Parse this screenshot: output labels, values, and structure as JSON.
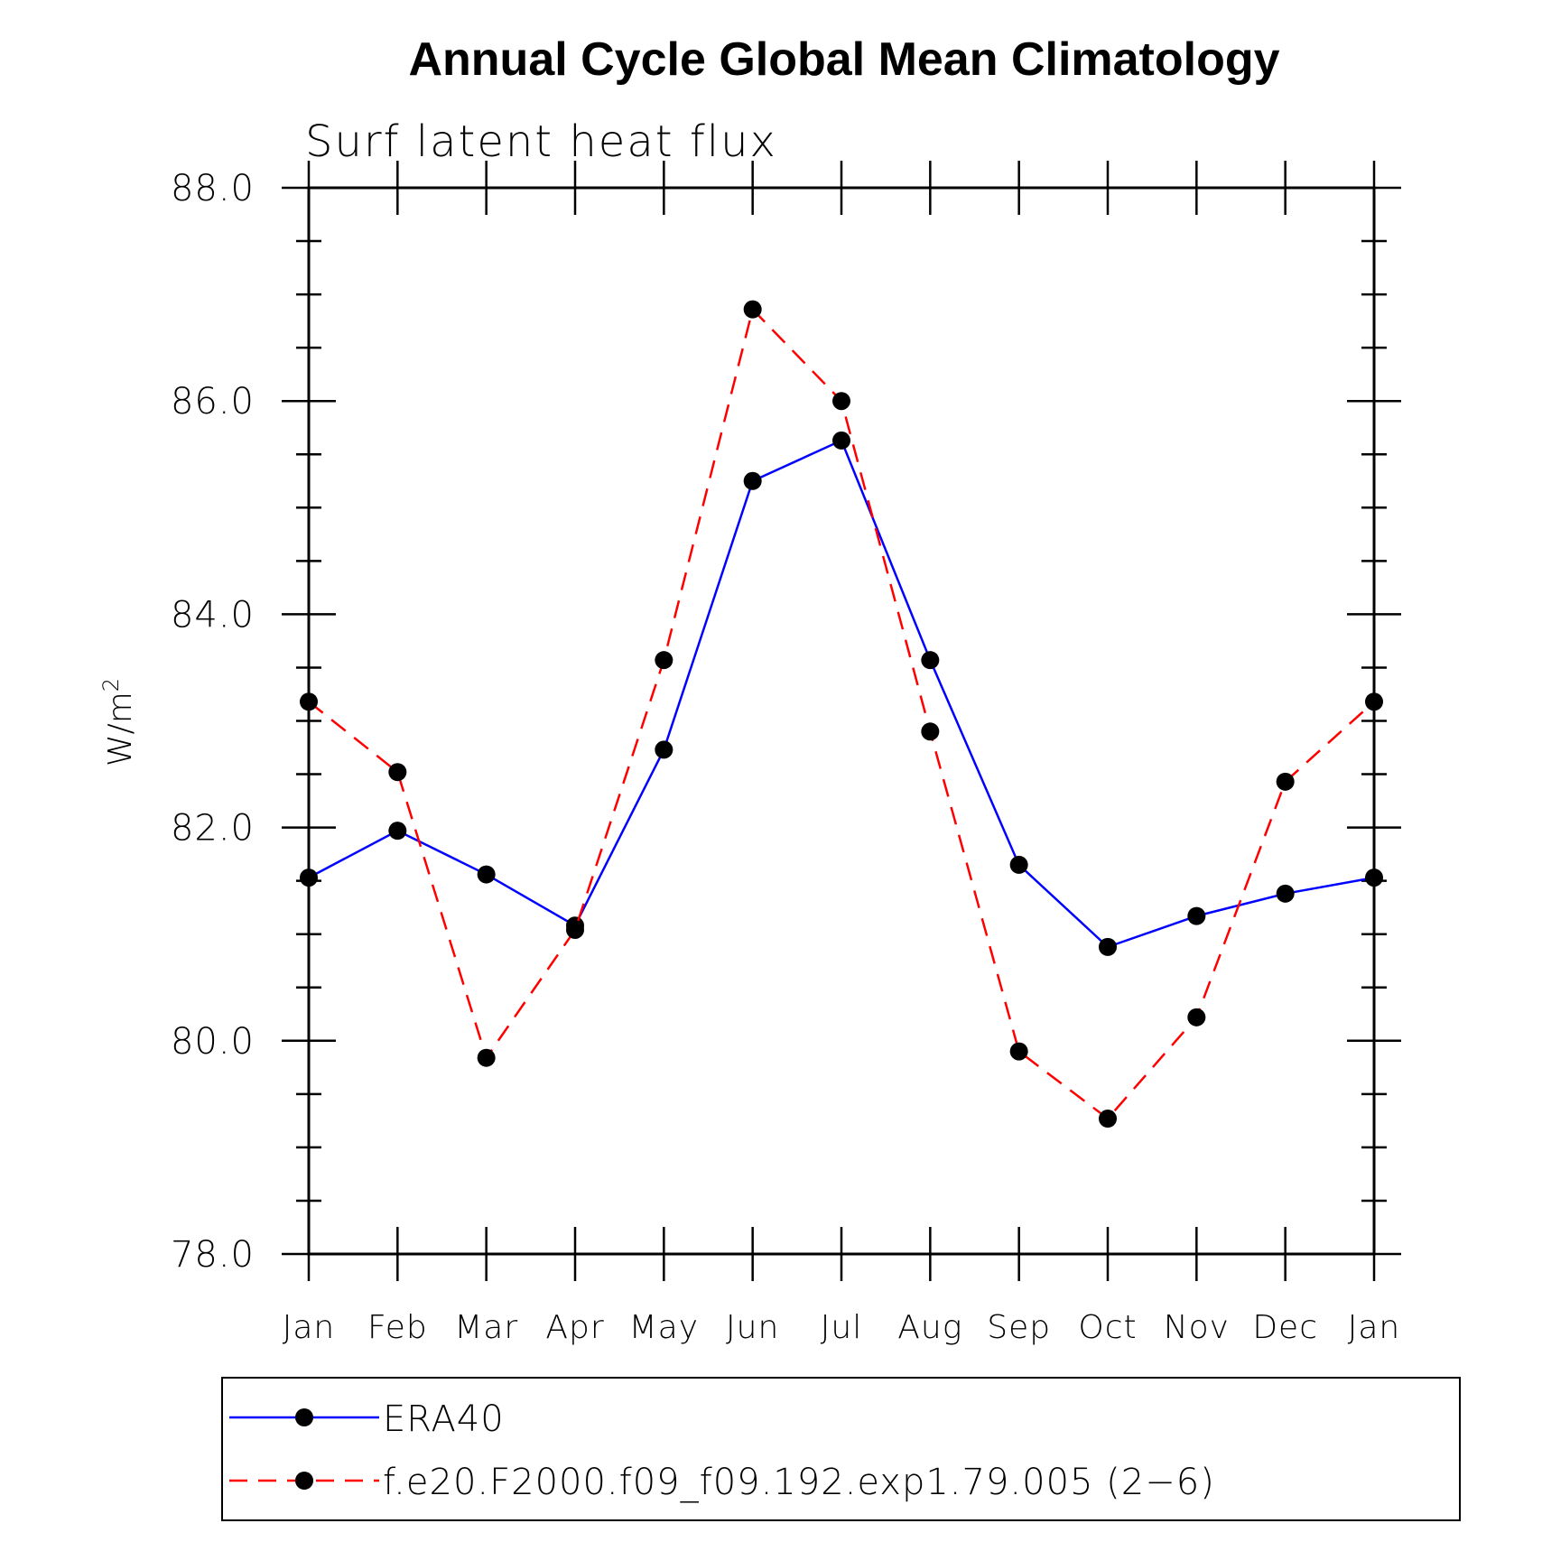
{
  "chart_data": {
    "type": "line",
    "title": "Annual Cycle Global Mean Climatology",
    "subtitle": "Surf latent heat flux",
    "ylabel": "W/m",
    "ylabel_sup": "2",
    "xlabel": "",
    "categories": [
      "Jan",
      "Feb",
      "Mar",
      "Apr",
      "May",
      "Jun",
      "Jul",
      "Aug",
      "Sep",
      "Oct",
      "Nov",
      "Dec",
      "Jan"
    ],
    "ylim": [
      78.0,
      88.0
    ],
    "yticks": [
      "78.0",
      "80.0",
      "82.0",
      "84.0",
      "86.0",
      "88.0"
    ],
    "grid": false,
    "legend_position": "bottom",
    "series": [
      {
        "name": "ERA40",
        "color": "#0000ff",
        "style": "solid",
        "marker": "filled-circle",
        "values": [
          81.53,
          81.97,
          81.56,
          81.08,
          82.73,
          85.25,
          85.63,
          83.57,
          81.65,
          80.88,
          81.17,
          81.38,
          81.53
        ]
      },
      {
        "name": "f.e20.F2000.f09_f09.192.exp1.79.005 (2−6)",
        "color": "#ff0000",
        "style": "dashed",
        "marker": "filled-circle",
        "values": [
          83.18,
          82.52,
          79.84,
          81.04,
          83.57,
          86.86,
          86.0,
          82.9,
          79.9,
          79.27,
          80.22,
          82.43,
          83.18
        ]
      }
    ]
  }
}
